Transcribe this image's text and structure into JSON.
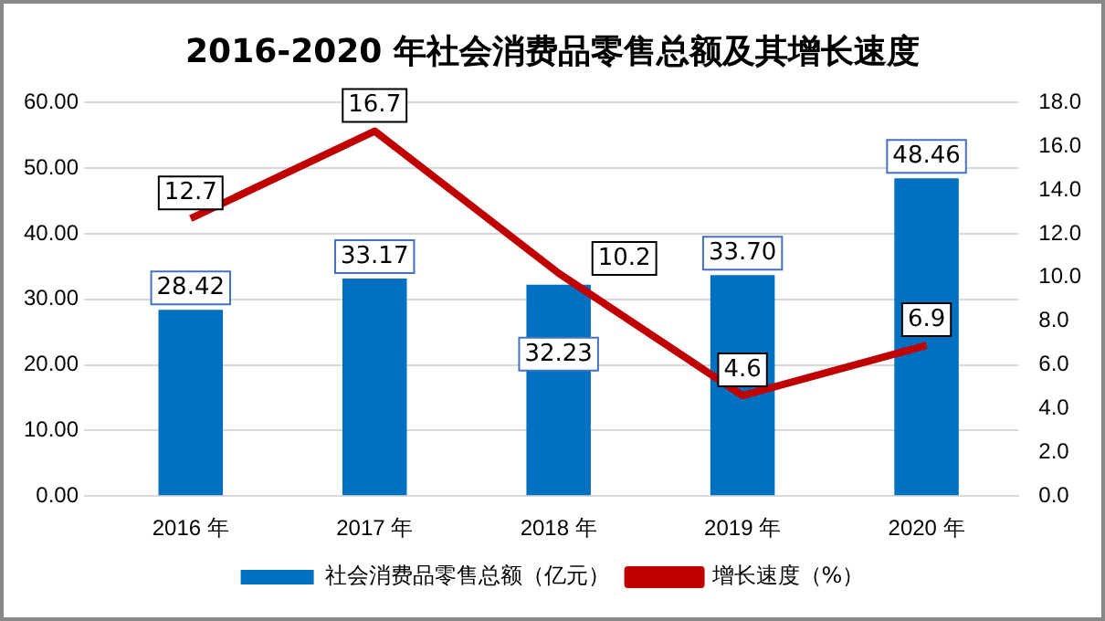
{
  "chart_data": {
    "type": "bar",
    "title": "2016-2020 年社会消费品零售总额及其增长速度",
    "categories": [
      "2016 年",
      "2017 年",
      "2018 年",
      "2019 年",
      "2020 年"
    ],
    "series": [
      {
        "name": "社会消费品零售总额（亿元）",
        "color": "#0070c0",
        "values": [
          28.42,
          33.17,
          32.23,
          33.7,
          48.46
        ],
        "value_labels": [
          "28.42",
          "33.17",
          "32.23",
          "33.70",
          "48.46"
        ]
      },
      {
        "name": "增长速度（%）",
        "type": "line",
        "axis": "y2",
        "color": "#c00000",
        "values": [
          12.7,
          16.7,
          10.2,
          4.6,
          6.9
        ],
        "value_labels": [
          "12.7",
          "16.7",
          "10.2",
          "4.6",
          "6.9"
        ]
      }
    ],
    "ylim": [
      0,
      60
    ],
    "yticks": [
      {
        "value": 0,
        "label": "0.00"
      },
      {
        "value": 10,
        "label": "10.00"
      },
      {
        "value": 20,
        "label": "20.00"
      },
      {
        "value": 30,
        "label": "30.00"
      },
      {
        "value": 40,
        "label": "40.00"
      },
      {
        "value": 50,
        "label": "50.00"
      },
      {
        "value": 60,
        "label": "60.00"
      }
    ],
    "y2lim": [
      0,
      18
    ],
    "y2ticks": [
      {
        "value": 0,
        "label": "0.0"
      },
      {
        "value": 2,
        "label": "2.0"
      },
      {
        "value": 4,
        "label": "4.0"
      },
      {
        "value": 6,
        "label": "6.0"
      },
      {
        "value": 8,
        "label": "8.0"
      },
      {
        "value": 10,
        "label": "10.0"
      },
      {
        "value": 12,
        "label": "12.0"
      },
      {
        "value": 14,
        "label": "14.0"
      },
      {
        "value": 16,
        "label": "16.0"
      },
      {
        "value": 18,
        "label": "18.0"
      }
    ],
    "grid": "y",
    "legend": "bottom",
    "marker": "none",
    "line_style": "solid"
  }
}
